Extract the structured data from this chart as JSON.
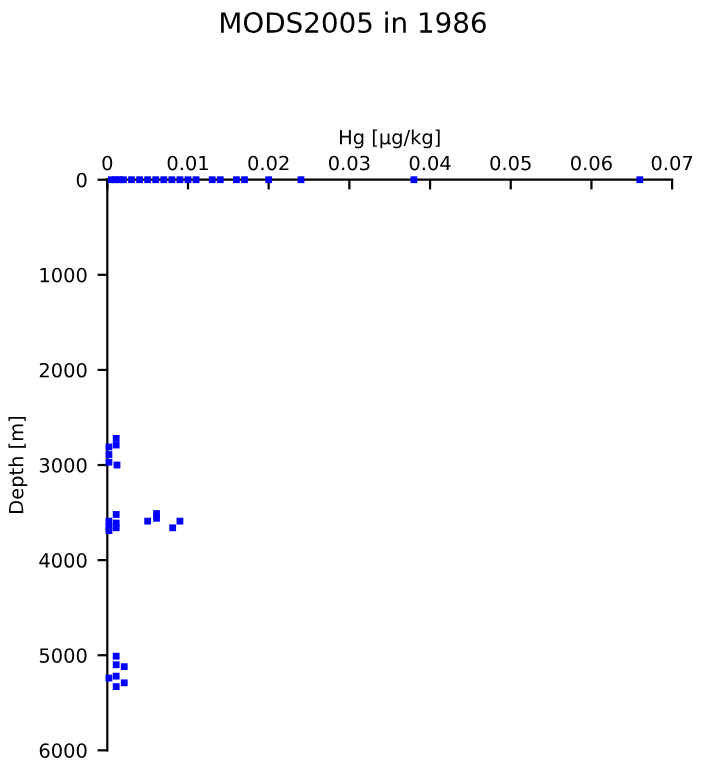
{
  "chart_data": {
    "type": "scatter",
    "title": "MODS2005 in 1986",
    "xlabel": "Hg [µg/kg]",
    "ylabel": "Depth [m]",
    "series": [
      {
        "color": "#0000ff",
        "x": [
          0.0005,
          0.001,
          0.0015,
          0.002,
          0.003,
          0.004,
          0.005,
          0.006,
          0.007,
          0.008,
          0.009,
          0.01,
          0.011,
          0.013,
          0.014,
          0.016,
          0.017,
          0.02,
          0.024,
          0.038,
          0.066,
          0.0011,
          0.0011,
          0.0002,
          0.0002,
          0.0002,
          0.0012,
          0.0011,
          0.0002,
          0.0011,
          0.0002,
          0.0011,
          0.0002,
          0.005,
          0.0061,
          0.0061,
          0.009,
          0.0081,
          0.0011,
          0.0011,
          0.0021,
          0.0002,
          0.0011,
          0.0021,
          0.0011
        ],
        "values": [
          0,
          0,
          0,
          0,
          0,
          0,
          0,
          0,
          0,
          0,
          0,
          0,
          0,
          0,
          0,
          0,
          0,
          0,
          0,
          0,
          0,
          2720,
          2790,
          2810,
          2890,
          2970,
          3000,
          3520,
          3590,
          3610,
          3650,
          3660,
          3690,
          3590,
          3510,
          3560,
          3590,
          3660,
          5010,
          5100,
          5120,
          5240,
          5220,
          5290,
          5330
        ]
      }
    ],
    "marker": "square",
    "xlim": [
      0,
      0.07
    ],
    "xticks": [
      0,
      0.01,
      0.02,
      0.03,
      0.04,
      0.05,
      0.06,
      0.07
    ],
    "ylim": [
      6000,
      0
    ],
    "yticks": [
      0,
      1000,
      2000,
      3000,
      4000,
      5000,
      6000
    ],
    "grid": false,
    "legend": false
  }
}
